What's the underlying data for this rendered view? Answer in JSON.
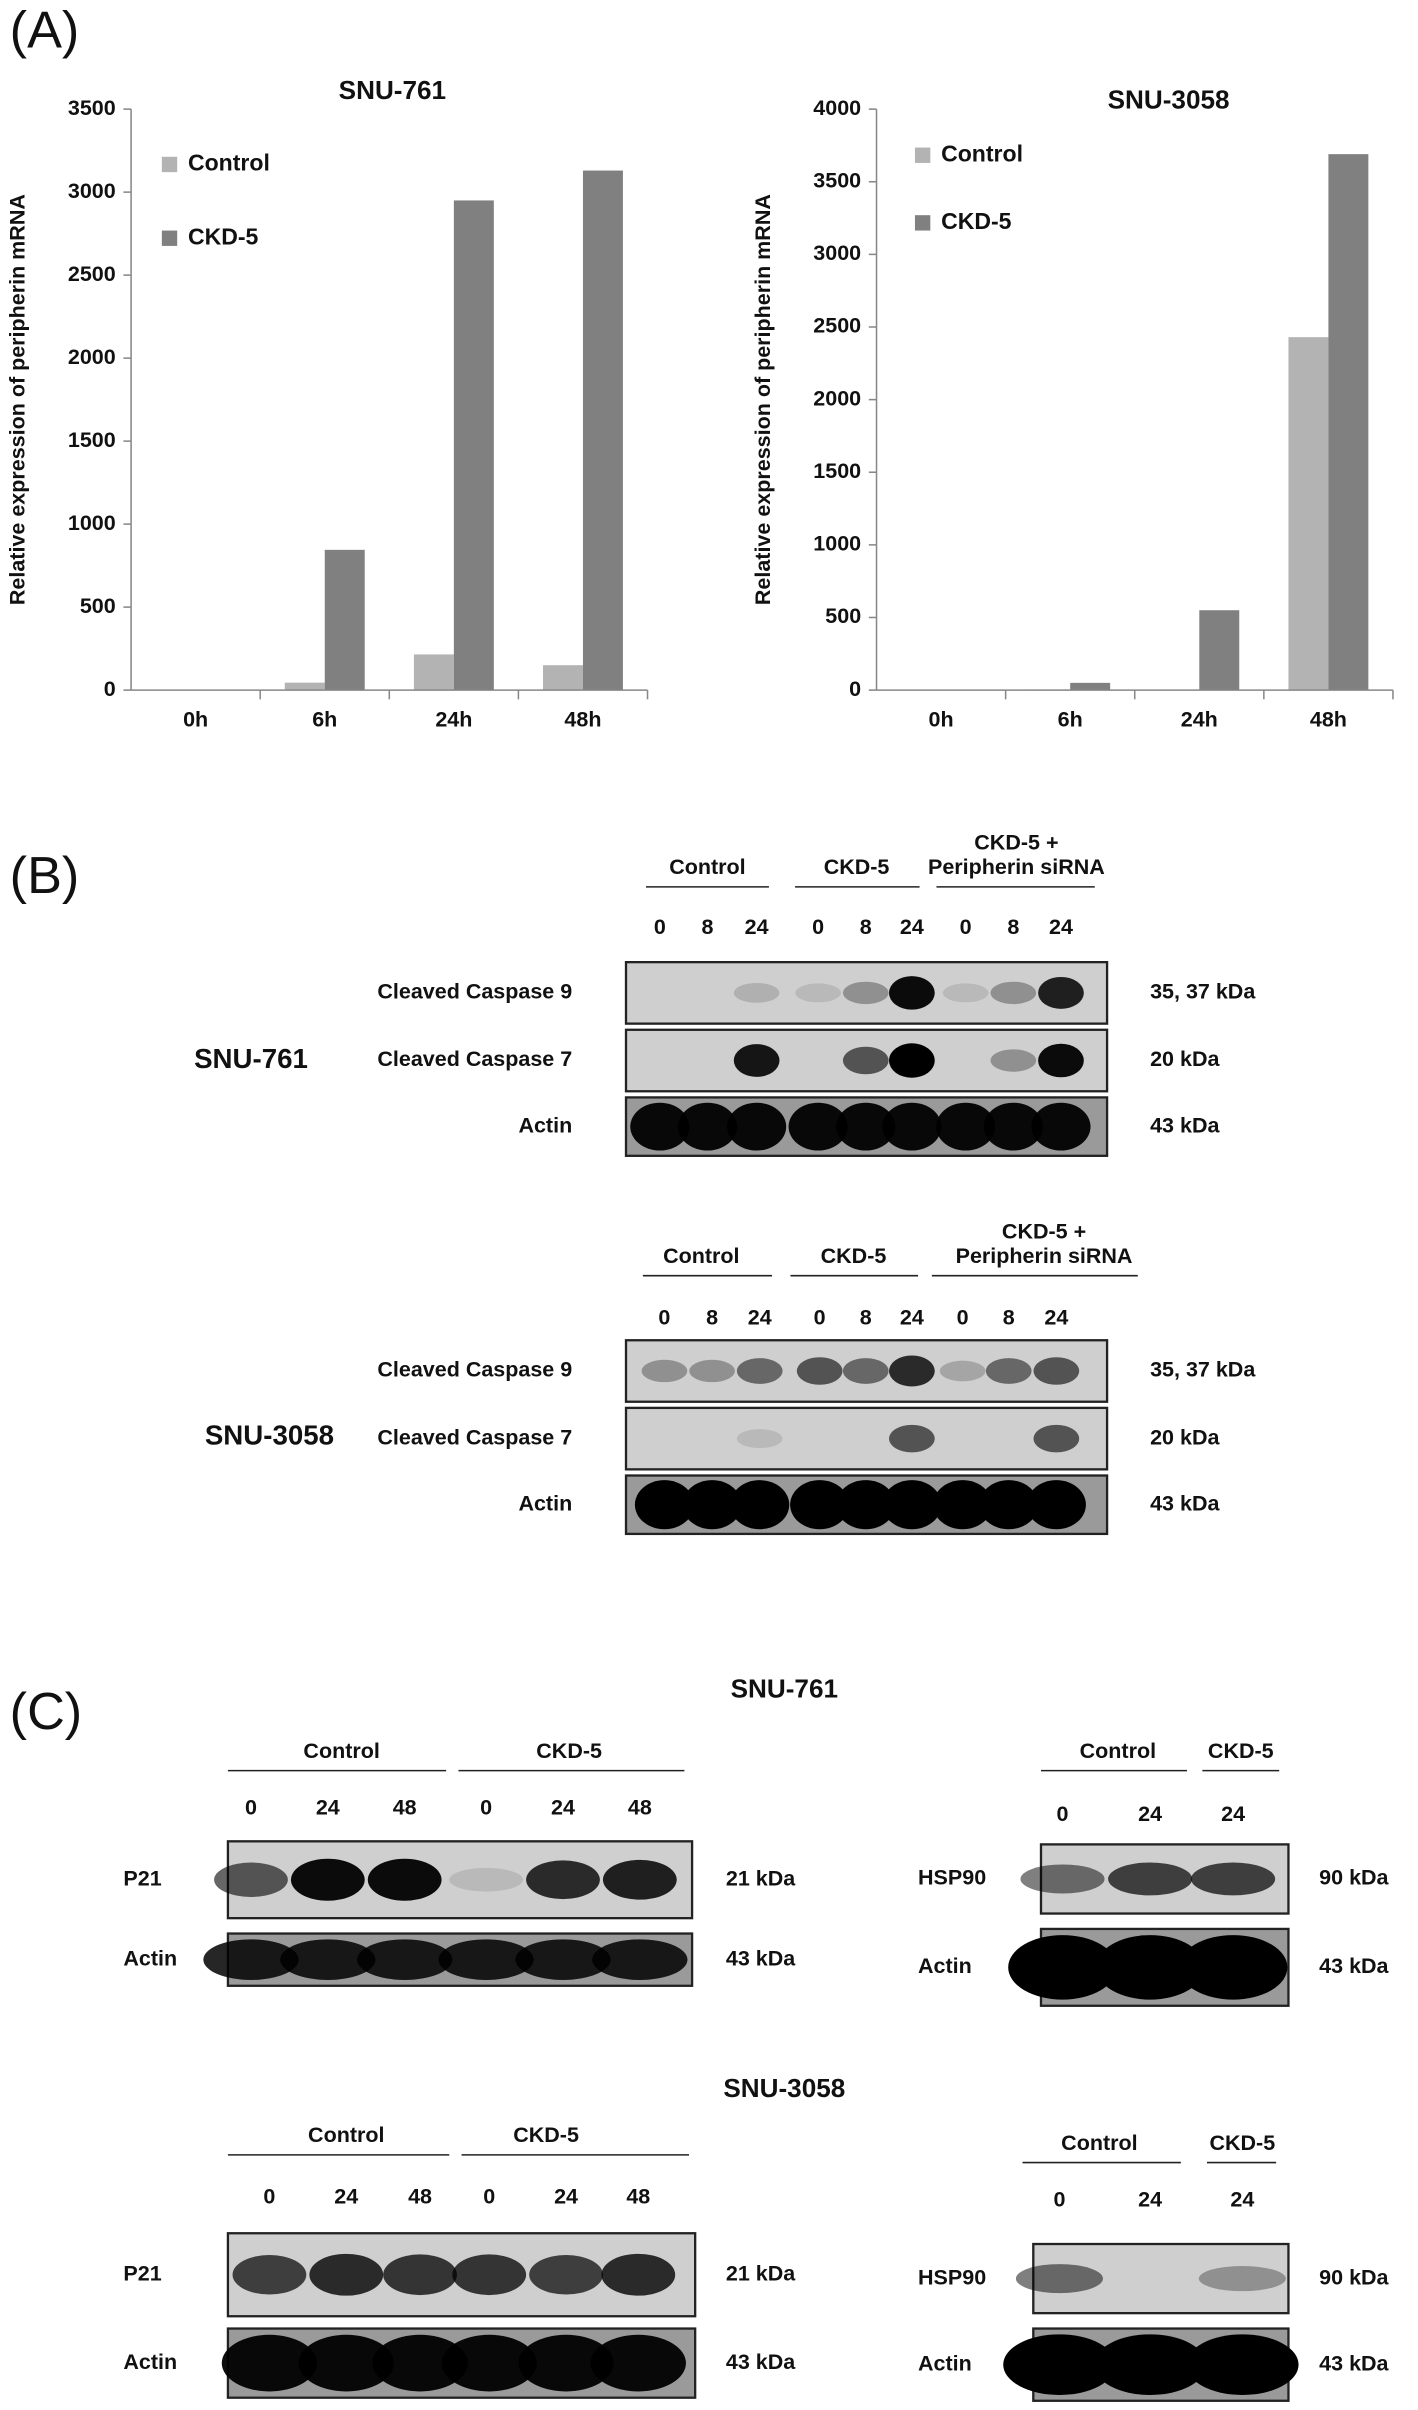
{
  "chart_data": [
    {
      "type": "bar",
      "title": "SNU-761",
      "y_label": "Relative expression of peripherin mRNA",
      "categories": [
        "0h",
        "6h",
        "24h",
        "48h"
      ],
      "series": [
        {
          "name": "Control",
          "color": "#b3b3b3",
          "values": [
            0,
            45,
            215,
            150
          ]
        },
        {
          "name": "CKD-5",
          "color": "#808080",
          "values": [
            0,
            845,
            2950,
            3130
          ]
        }
      ],
      "ylim": [
        0,
        3500
      ],
      "yticks": [
        0,
        500,
        1000,
        1500,
        2000,
        2500,
        3000,
        3500
      ],
      "grid": false
    },
    {
      "type": "bar",
      "title": "SNU-3058",
      "y_label": "Relative expression of peripherin mRNA",
      "categories": [
        "0h",
        "6h",
        "24h",
        "48h"
      ],
      "series": [
        {
          "name": "Control",
          "color": "#b3b3b3",
          "values": [
            0,
            5,
            0,
            2430
          ]
        },
        {
          "name": "CKD-5",
          "color": "#808080",
          "values": [
            0,
            50,
            550,
            3690
          ]
        }
      ],
      "ylim": [
        0,
        4000
      ],
      "yticks": [
        0,
        500,
        1000,
        1500,
        2000,
        2500,
        3000,
        3500,
        4000
      ],
      "grid": false
    }
  ],
  "panel_labels": [
    "(A)",
    "(B)",
    "(C)"
  ],
  "panel_b": [
    {
      "cell_line": "SNU-761",
      "groups": [
        [
          "Control"
        ],
        [
          "CKD-5"
        ],
        [
          "CKD-5 +",
          "Peripherin siRNA"
        ]
      ],
      "lanes": [
        "0",
        "8",
        "24",
        "0",
        "8",
        "24",
        "0",
        "8",
        "24"
      ],
      "rows": [
        {
          "label": "Cleaved Caspase 9",
          "size": "35, 37 kDa"
        },
        {
          "label": "Cleaved Caspase 7",
          "size": "20 kDa"
        },
        {
          "label": "Actin",
          "size": "43 kDa"
        }
      ]
    },
    {
      "cell_line": "SNU-3058",
      "groups": [
        [
          "Control"
        ],
        [
          "CKD-5"
        ],
        [
          "CKD-5 +",
          "Peripherin siRNA"
        ]
      ],
      "lanes": [
        "0",
        "8",
        "24",
        "0",
        "8",
        "24",
        "0",
        "8",
        "24"
      ],
      "rows": [
        {
          "label": "Cleaved Caspase 9",
          "size": "35, 37 kDa"
        },
        {
          "label": "Cleaved Caspase 7",
          "size": "20 kDa"
        },
        {
          "label": "Actin",
          "size": "43 kDa"
        }
      ]
    }
  ],
  "panel_c": [
    {
      "title": "SNU-761",
      "left": {
        "groups": [
          [
            "Control"
          ],
          [
            "CKD-5"
          ]
        ],
        "lanes": [
          "0",
          "24",
          "48",
          "0",
          "24",
          "48"
        ],
        "rows": [
          {
            "label": "P21",
            "size": "21 kDa"
          },
          {
            "label": "Actin",
            "size": "43 kDa"
          }
        ]
      },
      "right": {
        "groups": [
          [
            "Control"
          ],
          [
            "CKD-5"
          ]
        ],
        "lanes": [
          "0",
          "24",
          "24"
        ],
        "rows": [
          {
            "label": "HSP90",
            "size": "90 kDa"
          },
          {
            "label": "Actin",
            "size": "43 kDa"
          }
        ]
      }
    },
    {
      "title": "SNU-3058",
      "left": {
        "groups": [
          [
            "Control"
          ],
          [
            "CKD-5"
          ]
        ],
        "lanes": [
          "0",
          "24",
          "48",
          "0",
          "24",
          "48"
        ],
        "rows": [
          {
            "label": "P21",
            "size": "21 kDa"
          },
          {
            "label": "Actin",
            "size": "43 kDa"
          }
        ]
      },
      "right": {
        "groups": [
          [
            "Control"
          ],
          [
            "CKD-5"
          ]
        ],
        "lanes": [
          "0",
          "24",
          "24"
        ],
        "rows": [
          {
            "label": "HSP90",
            "size": "90 kDa"
          },
          {
            "label": "Actin",
            "size": "43 kDa"
          }
        ]
      }
    }
  ]
}
